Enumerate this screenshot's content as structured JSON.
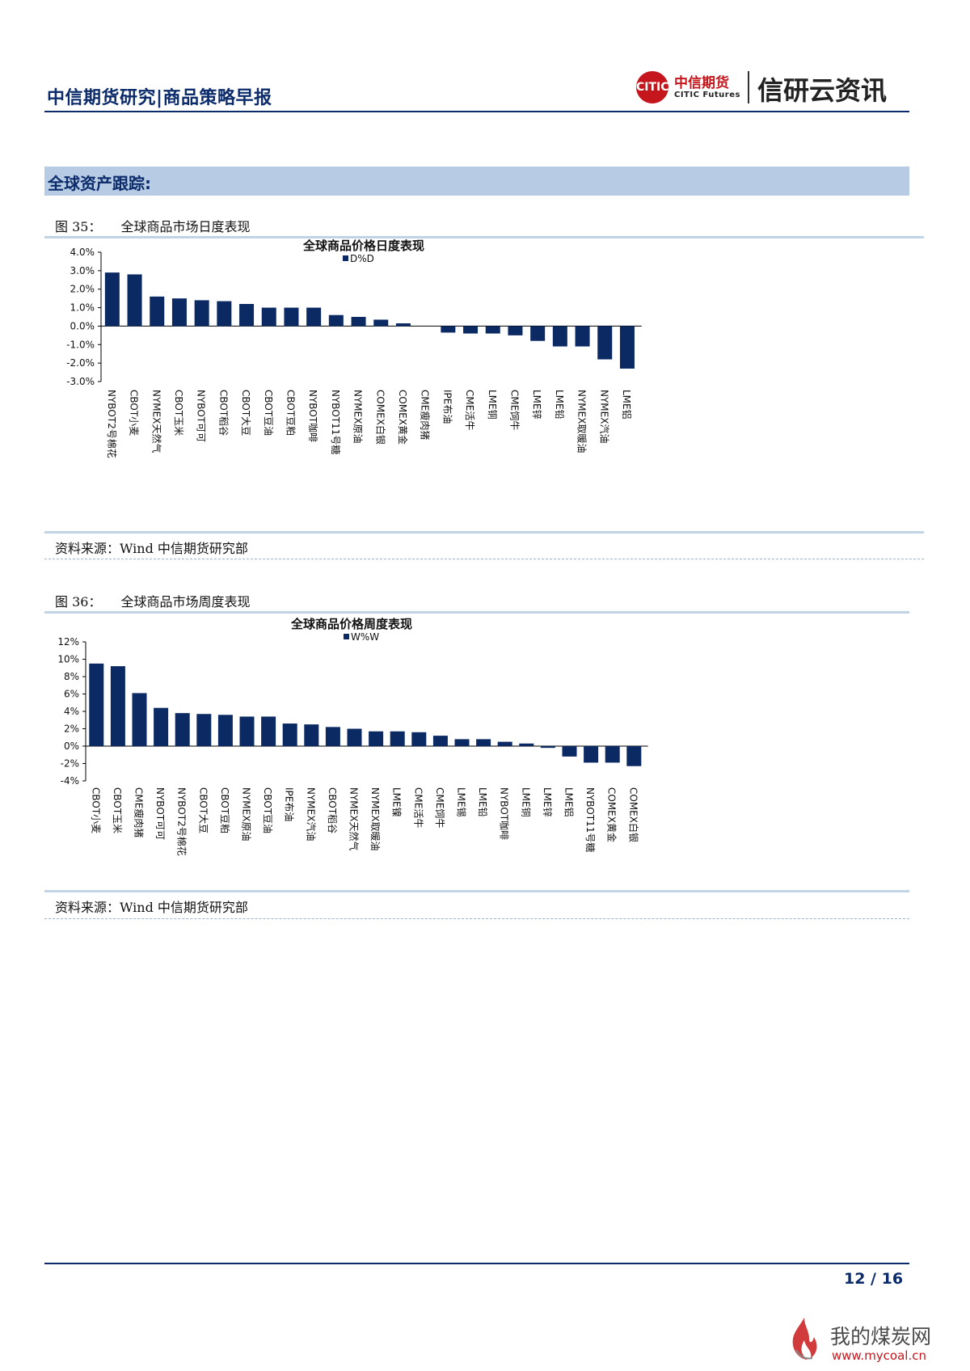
{
  "header": {
    "title": "中信期货研究|商品策略早报",
    "logo_mark": "CITIC",
    "logo_cn": "中信期货",
    "logo_en": "CITIC Futures",
    "slogan": "信研云资讯"
  },
  "section": {
    "title": "全球资产跟踪:"
  },
  "figures": [
    {
      "number": "图 35：",
      "caption": "全球商品市场日度表现",
      "source": "资料来源：Wind  中信期货研究部"
    },
    {
      "number": "图 36：",
      "caption": "全球商品市场周度表现",
      "source": "资料来源：Wind  中信期货研究部"
    }
  ],
  "chart_data": [
    {
      "type": "bar",
      "title": "全球商品价格日度表现",
      "legend": "D%D",
      "bar_color": "#0b2a64",
      "ylim": [
        -3.0,
        4.0
      ],
      "yticks": [
        -3.0,
        -2.0,
        -1.0,
        0.0,
        1.0,
        2.0,
        3.0,
        4.0
      ],
      "ytick_labels": [
        "-3.0%",
        "-2.0%",
        "-1.0%",
        "0.0%",
        "1.0%",
        "2.0%",
        "3.0%",
        "4.0%"
      ],
      "categories": [
        "NYBOT2号棉花",
        "CBOT小麦",
        "NYMEX天然气",
        "CBOT玉米",
        "NYBOT可可",
        "CBOT稻谷",
        "CBOT大豆",
        "CBOT豆油",
        "CBOT豆粕",
        "NYBOT咖啡",
        "NYBOT11号糖",
        "NYMEX原油",
        "COMEX白银",
        "COMEX黄金",
        "CME瘦肉猪",
        "IPE布油",
        "CME活牛",
        "LME铜",
        "CME饲牛",
        "LME锌",
        "LME铅",
        "NYMEX取暖油",
        "NYMEX汽油",
        "LME铝"
      ],
      "values": [
        2.9,
        2.8,
        1.6,
        1.5,
        1.4,
        1.35,
        1.2,
        1.0,
        1.0,
        1.0,
        0.6,
        0.5,
        0.35,
        0.15,
        0.0,
        -0.35,
        -0.4,
        -0.4,
        -0.5,
        -0.8,
        -1.1,
        -1.1,
        -1.8,
        -2.3
      ]
    },
    {
      "type": "bar",
      "title": "全球商品价格周度表现",
      "legend": "W%W",
      "bar_color": "#0b2a64",
      "ylim": [
        -4,
        12
      ],
      "yticks": [
        -4,
        -2,
        0,
        2,
        4,
        6,
        8,
        10,
        12
      ],
      "ytick_labels": [
        "-4%",
        "-2%",
        "0%",
        "2%",
        "4%",
        "6%",
        "8%",
        "10%",
        "12%"
      ],
      "categories": [
        "CBOT小麦",
        "CBOT玉米",
        "CME瘦肉猪",
        "NYBOT可可",
        "NYBOT2号棉花",
        "CBOT大豆",
        "CBOT豆粕",
        "NYMEX原油",
        "CBOT豆油",
        "IPE布油",
        "NYMEX汽油",
        "CBOT稻谷",
        "NYMEX天然气",
        "NYMEX取暖油",
        "LME镍",
        "CME活牛",
        "CME饲牛",
        "LME锡",
        "LME铅",
        "NYBOT咖啡",
        "LME铜",
        "LME锌",
        "LME铝",
        "NYBOT11号糖",
        "COMEX黄金",
        "COMEX白银"
      ],
      "values": [
        9.5,
        9.2,
        6.1,
        4.4,
        3.8,
        3.7,
        3.6,
        3.4,
        3.4,
        2.6,
        2.5,
        2.2,
        2.0,
        1.7,
        1.7,
        1.6,
        1.2,
        0.8,
        0.8,
        0.5,
        0.3,
        -0.2,
        -1.2,
        -1.9,
        -1.9,
        -2.3
      ]
    }
  ],
  "footer": {
    "page": "12 / 16",
    "watermark_cn": "我的煤炭网",
    "watermark_url": "www.mycoal.cn"
  }
}
